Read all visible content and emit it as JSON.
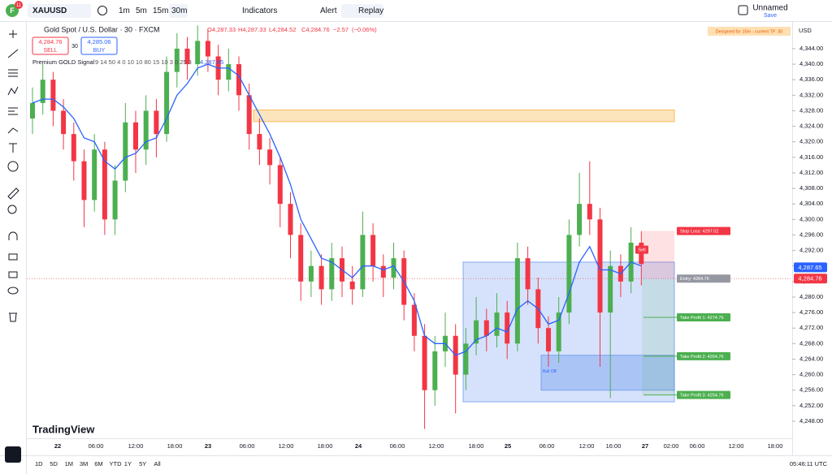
{
  "toolbar": {
    "notification_count": "11",
    "symbol": "XAUUSD",
    "intervals": [
      "1m",
      "5m",
      "15m",
      "30m"
    ],
    "indicators": "Indicators",
    "alert": "Alert",
    "replay": "Replay",
    "layout_name": "Unnamed",
    "save": "Save"
  },
  "chart_data": {
    "type": "candlestick",
    "title": "Gold Spot / U.S. Dollar · 30 · FXCM",
    "ohlc_legend": {
      "open": {
        "value": 4287.33,
        "label": "O4,287.33"
      },
      "high": {
        "value": 4287.33,
        "label": "H4,287.33"
      },
      "low": {
        "value": 4284.52,
        "label": "L4,284.52"
      },
      "close": {
        "value": 4284.76,
        "label": "C4,284.76"
      },
      "change": {
        "value": -2.57,
        "label": "−2.57"
      },
      "change_pct": {
        "value": -0.06,
        "label": "(−0.06%)"
      }
    },
    "sell": {
      "price": {
        "value": 4284.76,
        "label": "4,284.76"
      },
      "label": "SELL"
    },
    "buy": {
      "price": {
        "value": 4285.06,
        "label": "4,285.06"
      },
      "label": "BUY"
    },
    "spread": 30,
    "indicator": {
      "name": "Premium GOLD Signal",
      "params": "9 14 50 4 0 10 10 80 15 10 3 0.25 3",
      "value": {
        "value": 4287.65,
        "label": "4,287.65"
      }
    },
    "badge": "Designed for 15m - current TF: 30",
    "currency": "USD",
    "ylim": [
      4243.6,
      4351.1
    ],
    "yticks": [
      {
        "value": 4344,
        "label": "4,344.00"
      },
      {
        "value": 4340,
        "label": "4,340.00"
      },
      {
        "value": 4336,
        "label": "4,336.00"
      },
      {
        "value": 4332,
        "label": "4,332.00"
      },
      {
        "value": 4328,
        "label": "4,328.00"
      },
      {
        "value": 4324,
        "label": "4,324.00"
      },
      {
        "value": 4320,
        "label": "4,320.00"
      },
      {
        "value": 4316,
        "label": "4,316.00"
      },
      {
        "value": 4312,
        "label": "4,312.00"
      },
      {
        "value": 4308,
        "label": "4,308.00"
      },
      {
        "value": 4304,
        "label": "4,304.00"
      },
      {
        "value": 4300,
        "label": "4,300.00"
      },
      {
        "value": 4296,
        "label": "4,296.00"
      },
      {
        "value": 4292,
        "label": "4,292.00"
      },
      {
        "value": 4288,
        "label": "4,288.00"
      },
      {
        "value": 4284,
        "label": "4,284.00"
      },
      {
        "value": 4280,
        "label": "4,280.00"
      },
      {
        "value": 4276,
        "label": "4,276.00"
      },
      {
        "value": 4272,
        "label": "4,272.00"
      },
      {
        "value": 4268,
        "label": "4,268.00"
      },
      {
        "value": 4264,
        "label": "4,264.00"
      },
      {
        "value": 4260,
        "label": "4,260.00"
      },
      {
        "value": 4256,
        "label": "4,256.00"
      },
      {
        "value": 4252,
        "label": "4,252.00"
      },
      {
        "value": 4248,
        "label": "4,248.00"
      }
    ],
    "x_labels": [
      "22",
      "06:00",
      "12:00",
      "18:00",
      "23",
      "06:00",
      "12:00",
      "18:00",
      "24",
      "06:00",
      "12:00",
      "18:00",
      "25",
      "06:00",
      "12:00",
      "16:00",
      "27",
      "02:00",
      "06:00",
      "12:00",
      "18:00"
    ],
    "up_color": "#4caf50",
    "down_color": "#f23645",
    "candles": [
      [
        4326,
        4334,
        4322,
        4330
      ],
      [
        4330,
        4340,
        4327,
        4336
      ],
      [
        4336,
        4338,
        4324,
        4328
      ],
      [
        4328,
        4331,
        4318,
        4322
      ],
      [
        4322,
        4325,
        4310,
        4315
      ],
      [
        4315,
        4318,
        4298,
        4305
      ],
      [
        4305,
        4322,
        4302,
        4318
      ],
      [
        4318,
        4320,
        4296,
        4300
      ],
      [
        4300,
        4314,
        4296,
        4310
      ],
      [
        4310,
        4330,
        4307,
        4325
      ],
      [
        4325,
        4328,
        4312,
        4318
      ],
      [
        4318,
        4332,
        4314,
        4328
      ],
      [
        4328,
        4331,
        4316,
        4322
      ],
      [
        4322,
        4342,
        4320,
        4338
      ],
      [
        4338,
        4348,
        4334,
        4344
      ],
      [
        4344,
        4347,
        4336,
        4340
      ],
      [
        4340,
        4350,
        4337,
        4346
      ],
      [
        4346,
        4349,
        4338,
        4342
      ],
      [
        4342,
        4345,
        4332,
        4336
      ],
      [
        4336,
        4344,
        4333,
        4340
      ],
      [
        4340,
        4342,
        4328,
        4332
      ],
      [
        4332,
        4335,
        4318,
        4322
      ],
      [
        4322,
        4326,
        4314,
        4318
      ],
      [
        4318,
        4321,
        4309,
        4314
      ],
      [
        4314,
        4316,
        4298,
        4304
      ],
      [
        4304,
        4307,
        4290,
        4296
      ],
      [
        4296,
        4299,
        4279,
        4284
      ],
      [
        4284,
        4292,
        4280,
        4288
      ],
      [
        4288,
        4291,
        4278,
        4282
      ],
      [
        4282,
        4294,
        4279,
        4290
      ],
      [
        4290,
        4293,
        4280,
        4284
      ],
      [
        4284,
        4288,
        4278,
        4282
      ],
      [
        4282,
        4302,
        4280,
        4296
      ],
      [
        4296,
        4299,
        4284,
        4288
      ],
      [
        4288,
        4291,
        4280,
        4285
      ],
      [
        4285,
        4294,
        4282,
        4290
      ],
      [
        4290,
        4292,
        4274,
        4278
      ],
      [
        4278,
        4281,
        4266,
        4270
      ],
      [
        4270,
        4273,
        4246,
        4256
      ],
      [
        4256,
        4270,
        4252,
        4266
      ],
      [
        4266,
        4276,
        4262,
        4270
      ],
      [
        4270,
        4273,
        4250,
        4260
      ],
      [
        4260,
        4272,
        4256,
        4268
      ],
      [
        4268,
        4280,
        4265,
        4274
      ],
      [
        4274,
        4277,
        4266,
        4270
      ],
      [
        4270,
        4281,
        4267,
        4276
      ],
      [
        4276,
        4279,
        4264,
        4268
      ],
      [
        4268,
        4294,
        4266,
        4290
      ],
      [
        4290,
        4293,
        4278,
        4282
      ],
      [
        4282,
        4285,
        4268,
        4272
      ],
      [
        4272,
        4275,
        4262,
        4266
      ],
      [
        4266,
        4280,
        4263,
        4276
      ],
      [
        4276,
        4300,
        4273,
        4296
      ],
      [
        4296,
        4312,
        4293,
        4304
      ],
      [
        4304,
        4315,
        4296,
        4300
      ],
      [
        4300,
        4303,
        4262,
        4276
      ],
      [
        4276,
        4292,
        4254,
        4288
      ],
      [
        4288,
        4291,
        4280,
        4284
      ],
      [
        4284,
        4298,
        4281,
        4294
      ],
      [
        4294,
        4297,
        4283,
        4288.5
      ]
    ],
    "ma": {
      "color": "#2962ff",
      "values": [
        4330,
        4331,
        4331,
        4329,
        4326,
        4321,
        4320,
        4315,
        4313,
        4316,
        4317,
        4320,
        4321,
        4326,
        4332,
        4335,
        4339,
        4340,
        4339,
        4339,
        4337,
        4332,
        4327,
        4322,
        4316,
        4309,
        4300,
        4295,
        4290,
        4289,
        4287,
        4285,
        4288,
        4288,
        4287,
        4288,
        4284,
        4279,
        4270,
        4268,
        4268,
        4265,
        4266,
        4269,
        4270,
        4272,
        4271,
        4277,
        4279,
        4277,
        4273,
        4274,
        4281,
        4289,
        4293,
        4287,
        4287,
        4286,
        4289,
        4288
      ]
    },
    "supply_zone": {
      "top": 4328.2,
      "bottom": 4325.2,
      "color": "#f5a623"
    },
    "setup_box": {
      "top": 4289,
      "bottom": 4253,
      "color": "#5b8def"
    },
    "bull_ob": {
      "label": "Bull OB",
      "top": 4265,
      "bottom": 4256
    },
    "signal": "Sell",
    "levels": [
      {
        "label": "Stop Loss: 4297.02",
        "value": 4297.02,
        "color": "#f23645"
      },
      {
        "label": "Entry: 4284.76",
        "value": 4284.76,
        "color": "#9598a1"
      },
      {
        "label": "Take Profit 1: 4274.76",
        "value": 4274.76,
        "color": "#4caf50"
      },
      {
        "label": "Take Profit 2: 4264.76",
        "value": 4264.76,
        "color": "#4caf50"
      },
      {
        "label": "Take Profit 3: 4254.76",
        "value": 4254.76,
        "color": "#4caf50"
      }
    ],
    "price_tags": [
      {
        "value": 4287.65,
        "label": "4,287.65",
        "color": "#2962ff"
      },
      {
        "value": 4284.76,
        "label": "4,284.76",
        "color": "#f23645"
      }
    ],
    "watermark": "TradingView"
  },
  "bottom_bar": {
    "ranges": [
      "1D",
      "5D",
      "1M",
      "3M",
      "6M",
      "YTD",
      "1Y",
      "5Y",
      "All"
    ],
    "clock": "05:46:11 UTC"
  }
}
